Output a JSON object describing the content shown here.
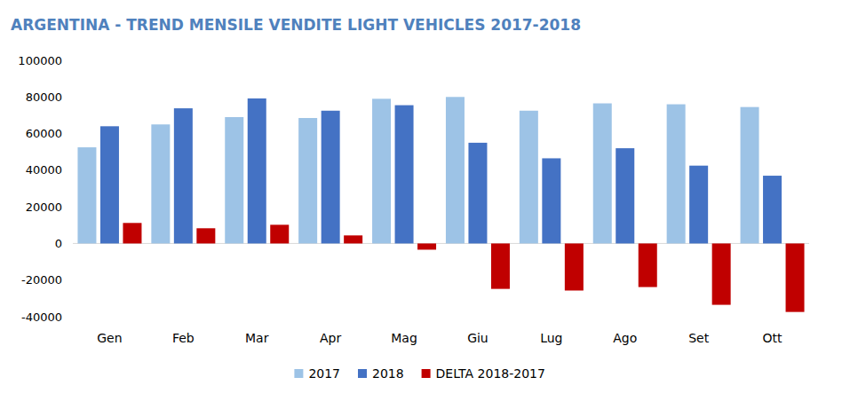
{
  "chart_data": {
    "type": "bar",
    "title": "ARGENTINA - TREND MENSILE VENDITE LIGHT VEHICLES 2017-2018",
    "categories": [
      "Gen",
      "Feb",
      "Mar",
      "Apr",
      "Mag",
      "Giu",
      "Lug",
      "Ago",
      "Set",
      "Ott"
    ],
    "series": [
      {
        "name": "2017",
        "color": "#9dc3e6",
        "values": [
          52500,
          65000,
          69000,
          68500,
          79000,
          80000,
          72500,
          76500,
          76000,
          74500
        ]
      },
      {
        "name": "2018",
        "color": "#4472c4",
        "values": [
          64000,
          73800,
          79200,
          72500,
          75500,
          55000,
          46500,
          52000,
          42500,
          37000
        ]
      },
      {
        "name": "DELTA 2018-2017",
        "color": "#c00000",
        "values": [
          11200,
          8300,
          10200,
          4400,
          -3400,
          -24800,
          -25700,
          -23800,
          -33500,
          -37400
        ]
      }
    ],
    "ylim": [
      -40000,
      100000
    ],
    "yticks": [
      -40000,
      -20000,
      0,
      20000,
      40000,
      60000,
      80000,
      100000
    ],
    "grid": false,
    "legend": "bottom"
  }
}
